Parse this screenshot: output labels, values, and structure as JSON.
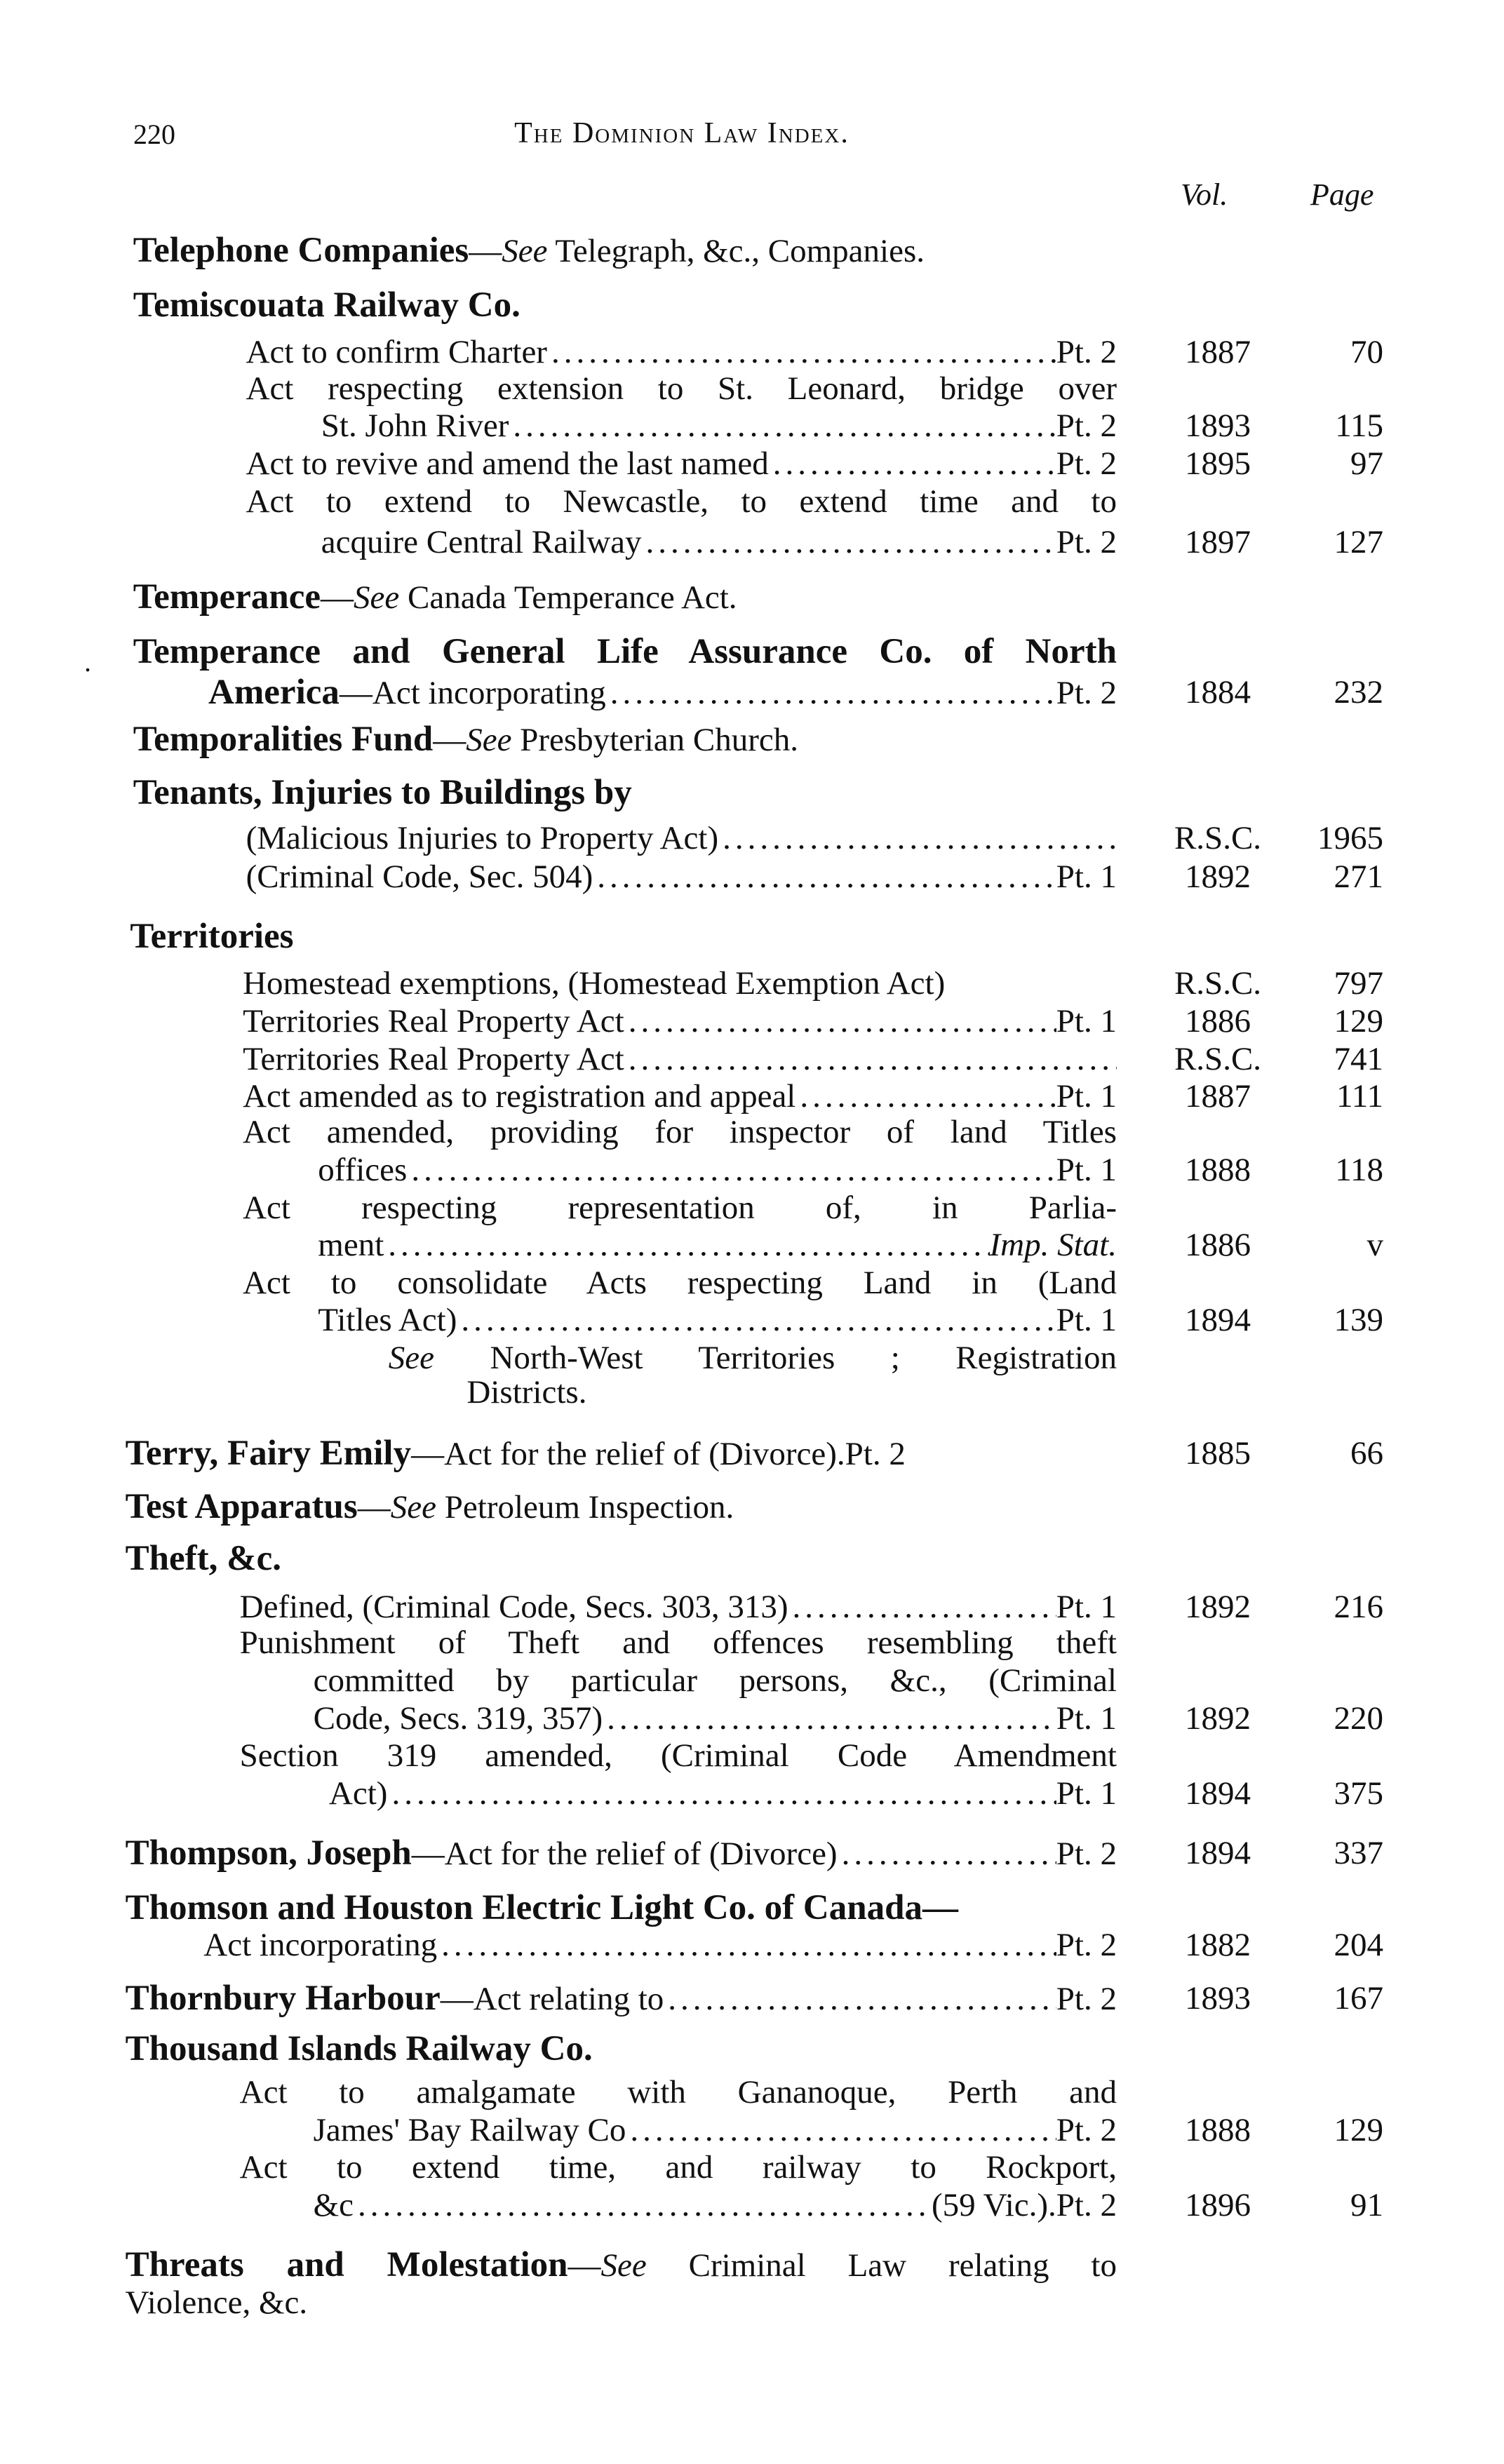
{
  "header": {
    "page_number": "220",
    "title": "The Dominion Law Index."
  },
  "columns": {
    "vol": "Vol.",
    "page": "Page"
  },
  "lines": [
    {
      "segs": [
        {
          "b": "Telephone Companies"
        },
        {
          "t": "—"
        },
        {
          "i": "See"
        },
        {
          "t": " Telegraph, &c., Companies."
        }
      ]
    },
    {
      "segs": [
        {
          "b": "Temiscouata Railway Co."
        }
      ]
    },
    {
      "segs": [
        {
          "t": "Act to confirm Charter"
        }
      ],
      "leader": true,
      "ref": "Pt. 2",
      "vol": "1887",
      "page": "70"
    },
    {
      "segs": [
        {
          "t": "Act respecting extension to St. Leonard, bridge over"
        }
      ],
      "justify": true
    },
    {
      "segs": [
        {
          "t": "St. John River"
        }
      ],
      "leader": true,
      "ref": "Pt. 2",
      "vol": "1893",
      "page": "115"
    },
    {
      "segs": [
        {
          "t": "Act to revive and amend the last named"
        }
      ],
      "leader": true,
      "ref": "Pt. 2",
      "vol": "1895",
      "page": "97"
    },
    {
      "segs": [
        {
          "t": "Act to extend to Newcastle, to extend time and to"
        }
      ],
      "justify": true
    },
    {
      "segs": [
        {
          "t": "acquire Central Railway"
        }
      ],
      "leader": true,
      "ref": "Pt. 2",
      "vol": "1897",
      "page": "127"
    },
    {
      "segs": [
        {
          "b": "Temperance"
        },
        {
          "t": "—"
        },
        {
          "i": "See"
        },
        {
          "t": " Canada Temperance Act."
        }
      ]
    },
    {
      "segs": [
        {
          "b": "Temperance and General Life Assurance Co. of North"
        }
      ],
      "justify": true
    },
    {
      "segs": [
        {
          "b": "America"
        },
        {
          "t": "—Act incorporating"
        }
      ],
      "leader": true,
      "ref": "Pt. 2",
      "vol": "1884",
      "page": "232"
    },
    {
      "segs": [
        {
          "b": "Temporalities Fund"
        },
        {
          "t": "—"
        },
        {
          "i": "See"
        },
        {
          "t": " Presbyterian Church."
        }
      ]
    },
    {
      "segs": [
        {
          "b": "Tenants, Injuries to Buildings by"
        }
      ]
    },
    {
      "segs": [
        {
          "t": "(Malicious Injuries to Property Act)"
        }
      ],
      "leader": true,
      "ref": "",
      "vol": "R.S.C.",
      "page": "1965"
    },
    {
      "segs": [
        {
          "t": "(Criminal Code, Sec. 504)"
        }
      ],
      "leader": true,
      "ref": "Pt. 1",
      "vol": "1892",
      "page": "271"
    },
    {
      "segs": [
        {
          "b": "Territories"
        }
      ]
    },
    {
      "segs": [
        {
          "t": "Homestead exemptions, (Homestead Exemption Act)"
        }
      ],
      "vol": "R.S.C.",
      "page": "797"
    },
    {
      "segs": [
        {
          "t": "Territories Real Property Act"
        }
      ],
      "leader": true,
      "ref": "Pt. 1",
      "vol": "1886",
      "page": "129"
    },
    {
      "segs": [
        {
          "t": "Territories Real Property Act"
        }
      ],
      "leader": true,
      "ref": "",
      "vol": "R.S.C.",
      "page": "741"
    },
    {
      "segs": [
        {
          "t": "Act amended as to registration and appeal"
        }
      ],
      "leader": true,
      "ref": "Pt. 1",
      "vol": "1887",
      "page": "111"
    },
    {
      "segs": [
        {
          "t": "Act amended, providing for inspector of land Titles"
        }
      ],
      "justify": true
    },
    {
      "segs": [
        {
          "t": "offices"
        }
      ],
      "leader": true,
      "ref": "Pt. 1",
      "vol": "1888",
      "page": "118"
    },
    {
      "segs": [
        {
          "t": "Act respecting representation of, in Parlia-"
        }
      ],
      "justify": true
    },
    {
      "segs": [
        {
          "t": "ment"
        }
      ],
      "leader": true,
      "ref_italic": "Imp. Stat.",
      "vol": "1886",
      "page": "v"
    },
    {
      "segs": [
        {
          "t": "Act to consolidate Acts respecting Land in (Land"
        }
      ],
      "justify": true
    },
    {
      "segs": [
        {
          "t": "Titles Act)"
        }
      ],
      "leader": true,
      "ref": "Pt. 1",
      "vol": "1894",
      "page": "139"
    },
    {
      "segs": [
        {
          "i": "See"
        },
        {
          "t": " North-West Territories ; Registration"
        }
      ],
      "justify": true
    },
    {
      "segs": [
        {
          "t": "Districts."
        }
      ]
    },
    {
      "segs": [
        {
          "b": "Terry, Fairy Emily"
        },
        {
          "t": "—Act for the relief of (Divorce)."
        }
      ],
      "ref": "Pt. 2",
      "vol": "1885",
      "page": "66"
    },
    {
      "segs": [
        {
          "b": "Test Apparatus"
        },
        {
          "t": "—"
        },
        {
          "i": "See"
        },
        {
          "t": " Petroleum Inspection."
        }
      ]
    },
    {
      "segs": [
        {
          "b": "Theft, &c."
        }
      ]
    },
    {
      "segs": [
        {
          "t": "Defined, (Criminal Code, Secs. 303, 313)"
        }
      ],
      "leader": true,
      "ref": "Pt. 1",
      "vol": "1892",
      "page": "216"
    },
    {
      "segs": [
        {
          "t": "Punishment of Theft and offences resembling theft"
        }
      ],
      "justify": true
    },
    {
      "segs": [
        {
          "t": "committed by particular persons, &c., (Criminal"
        }
      ],
      "justify": true
    },
    {
      "segs": [
        {
          "t": "Code, Secs. 319, 357)"
        }
      ],
      "leader": true,
      "ref": "Pt. 1",
      "vol": "1892",
      "page": "220"
    },
    {
      "segs": [
        {
          "t": "Section 319 amended, (Criminal Code Amendment"
        }
      ],
      "justify": true
    },
    {
      "segs": [
        {
          "t": "Act)"
        }
      ],
      "leader": true,
      "ref": "Pt. 1",
      "vol": "1894",
      "page": "375"
    },
    {
      "segs": [
        {
          "b": "Thompson, Joseph"
        },
        {
          "t": "—Act for the relief of (Divorce)"
        }
      ],
      "leader": true,
      "ref": "Pt. 2",
      "vol": "1894",
      "page": "337"
    },
    {
      "segs": [
        {
          "b": "Thomson and Houston Electric Light Co. of Canada—"
        }
      ]
    },
    {
      "segs": [
        {
          "t": "Act incorporating"
        }
      ],
      "leader": true,
      "ref": "Pt. 2",
      "vol": "1882",
      "page": "204"
    },
    {
      "segs": [
        {
          "b": "Thornbury Harbour"
        },
        {
          "t": "—Act relating to"
        }
      ],
      "leader": true,
      "ref": "Pt. 2",
      "vol": "1893",
      "page": "167"
    },
    {
      "segs": [
        {
          "b": "Thousand Islands Railway Co."
        }
      ]
    },
    {
      "segs": [
        {
          "t": "Act to amalgamate with Gananoque, Perth and"
        }
      ],
      "justify": true
    },
    {
      "segs": [
        {
          "t": "James' Bay Railway Co"
        }
      ],
      "leader": true,
      "ref": "Pt. 2",
      "vol": "1888",
      "page": "129"
    },
    {
      "segs": [
        {
          "t": "Act to extend time, and railway to Rockport,"
        }
      ],
      "justify": true
    },
    {
      "segs": [
        {
          "t": "&c"
        }
      ],
      "leader": true,
      "ref": "(59 Vic.).Pt. 2",
      "vol": "1896",
      "page": "91"
    },
    {
      "segs": [
        {
          "b": "Threats and Molestation"
        },
        {
          "t": "—"
        },
        {
          "i": "See"
        },
        {
          "t": " Criminal Law relating to"
        }
      ],
      "justify": true
    },
    {
      "segs": [
        {
          "t": "Violence, &c."
        }
      ]
    }
  ]
}
